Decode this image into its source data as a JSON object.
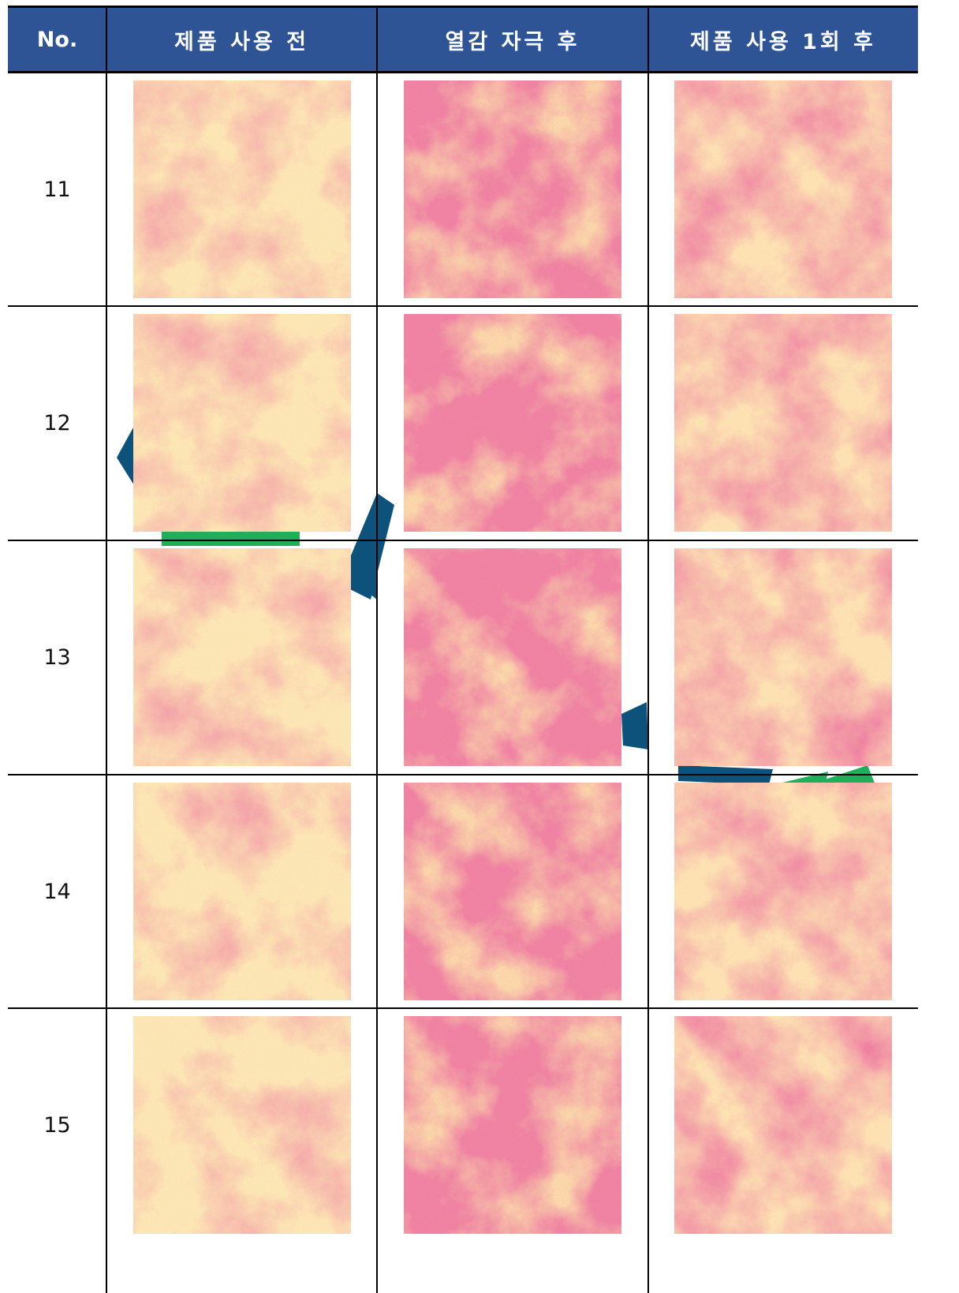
{
  "table": {
    "header": [
      "No.",
      "제품 사용 전",
      "열감 자극 후",
      "제품 사용 1회 후"
    ],
    "rows": [
      [
        "11"
      ],
      [
        "12"
      ],
      [
        "13"
      ],
      [
        "14"
      ],
      [
        "15"
      ]
    ]
  }
}
